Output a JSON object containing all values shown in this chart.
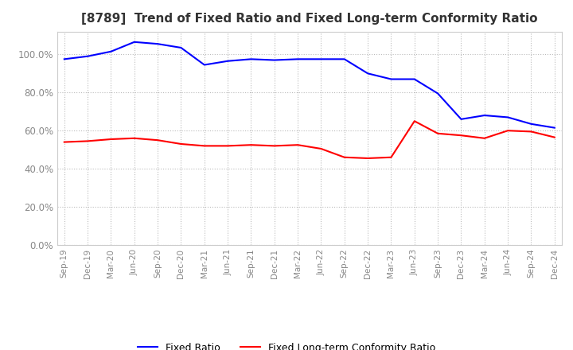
{
  "title": "[8789]  Trend of Fixed Ratio and Fixed Long-term Conformity Ratio",
  "x_labels": [
    "Sep-19",
    "Dec-19",
    "Mar-20",
    "Jun-20",
    "Sep-20",
    "Dec-20",
    "Mar-21",
    "Jun-21",
    "Sep-21",
    "Dec-21",
    "Mar-22",
    "Jun-22",
    "Sep-22",
    "Dec-22",
    "Mar-23",
    "Jun-23",
    "Sep-23",
    "Dec-23",
    "Mar-24",
    "Jun-24",
    "Sep-24",
    "Dec-24"
  ],
  "fixed_ratio": [
    97.5,
    99.0,
    101.5,
    106.5,
    105.5,
    103.5,
    94.5,
    96.5,
    97.5,
    97.0,
    97.5,
    97.5,
    97.5,
    90.0,
    87.0,
    87.0,
    79.5,
    66.0,
    68.0,
    67.0,
    63.5,
    61.5
  ],
  "fixed_lt_ratio": [
    54.0,
    54.5,
    55.5,
    56.0,
    55.0,
    53.0,
    52.0,
    52.0,
    52.5,
    52.0,
    52.5,
    50.5,
    46.0,
    45.5,
    46.0,
    65.0,
    58.5,
    57.5,
    56.0,
    60.0,
    59.5,
    56.5
  ],
  "fixed_ratio_color": "#0000FF",
  "fixed_lt_ratio_color": "#FF0000",
  "ylim": [
    0,
    112
  ],
  "yticks": [
    0,
    20,
    40,
    60,
    80,
    100
  ],
  "background_color": "#FFFFFF",
  "grid_color": "#BBBBBB",
  "title_fontsize": 11,
  "legend_fontsize": 9,
  "tick_color": "#888888"
}
